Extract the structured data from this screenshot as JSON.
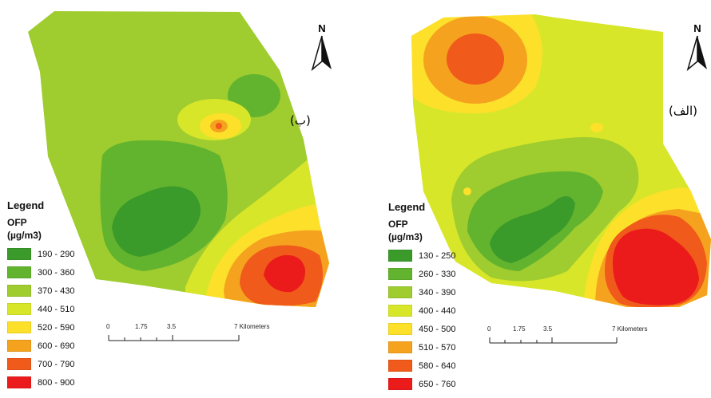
{
  "panels": [
    {
      "id": "b",
      "label": "(ب)",
      "legend": {
        "title": "Legend",
        "variable": "OFP",
        "unit": "(µg/m3)",
        "classes": [
          {
            "range": "190 - 290",
            "color": "#3a9a2a"
          },
          {
            "range": "300 - 360",
            "color": "#62b32e"
          },
          {
            "range": "370 - 430",
            "color": "#9fcc2e"
          },
          {
            "range": "440 - 510",
            "color": "#d8e62a"
          },
          {
            "range": "520 - 590",
            "color": "#fde02a"
          },
          {
            "range": "600 - 690",
            "color": "#f5a21f"
          },
          {
            "range": "700 - 790",
            "color": "#f05a1a"
          },
          {
            "range": "800 - 900",
            "color": "#ec1b1b"
          }
        ]
      },
      "scale": {
        "ticks": [
          "0",
          "1.75",
          "3.5",
          "7 Kilometers"
        ]
      },
      "north": "N"
    },
    {
      "id": "a",
      "label": "(الف)",
      "legend": {
        "title": "Legend",
        "variable": "OFP",
        "unit": "(µg/m3)",
        "classes": [
          {
            "range": "130 - 250",
            "color": "#3a9a2a"
          },
          {
            "range": "260 - 330",
            "color": "#62b32e"
          },
          {
            "range": "340 - 390",
            "color": "#9fcc2e"
          },
          {
            "range": "400 - 440",
            "color": "#d8e62a"
          },
          {
            "range": "450 - 500",
            "color": "#fde02a"
          },
          {
            "range": "510 - 570",
            "color": "#f5a21f"
          },
          {
            "range": "580 - 640",
            "color": "#f05a1a"
          },
          {
            "range": "650 - 760",
            "color": "#ec1b1b"
          }
        ]
      },
      "scale": {
        "ticks": [
          "0",
          "1.75",
          "3.5",
          "7 Kilometers"
        ]
      },
      "north": "N"
    }
  ]
}
